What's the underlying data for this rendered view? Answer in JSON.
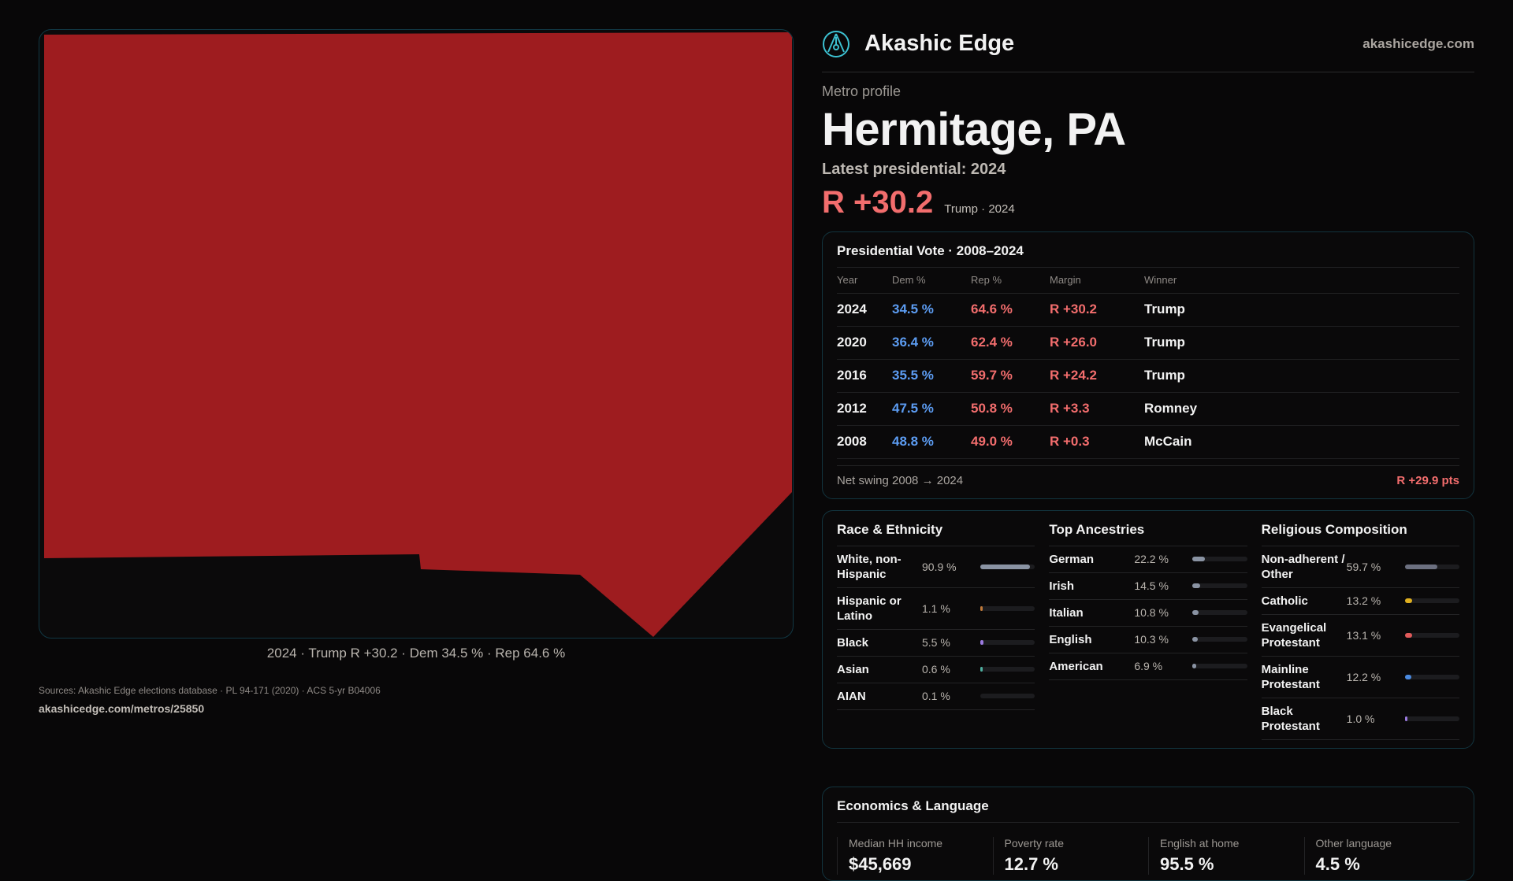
{
  "brand": {
    "name": "Akashic Edge",
    "domain": "akashicedge.com"
  },
  "profile": {
    "kicker": "Metro profile",
    "title": "Hermitage, PA",
    "latest": "Latest presidential: 2024",
    "margin": "R +30.2",
    "sub": "Trump · 2024"
  },
  "map": {
    "fill": "#9e1c1f",
    "caption": "2024 · Trump R +30.2 · Dem 34.5 % · Rep 64.6 %"
  },
  "vote": {
    "title": "Presidential Vote · 2008–2024",
    "headers": [
      "Year",
      "Dem %",
      "Rep %",
      "Margin",
      "Winner"
    ],
    "rows": [
      [
        "2024",
        "34.5 %",
        "64.6 %",
        "R +30.2",
        "Trump"
      ],
      [
        "2020",
        "36.4 %",
        "62.4 %",
        "R +26.0",
        "Trump"
      ],
      [
        "2016",
        "35.5 %",
        "59.7 %",
        "R +24.2",
        "Trump"
      ],
      [
        "2012",
        "47.5 %",
        "50.8 %",
        "R +3.3",
        "Romney"
      ],
      [
        "2008",
        "48.8 %",
        "49.0 %",
        "R +0.3",
        "McCain"
      ]
    ],
    "swing_label": "Net swing 2008 → 2024",
    "swing_value": "R +29.9 pts"
  },
  "race": {
    "title": "Race & Ethnicity",
    "items": [
      {
        "label": "White, non-Hispanic",
        "value": "90.9 %",
        "pct": 90.9,
        "color": "#8a93a3"
      },
      {
        "label": "Hispanic or Latino",
        "value": "1.1 %",
        "pct": 1.1,
        "color": "#c07a3a"
      },
      {
        "label": "Black",
        "value": "5.5 %",
        "pct": 5.5,
        "color": "#9b7ae0"
      },
      {
        "label": "Asian",
        "value": "0.6 %",
        "pct": 0.6,
        "color": "#4fb0a0"
      },
      {
        "label": "AIAN",
        "value": "0.1 %",
        "pct": 0.1,
        "color": "#a0a0a0"
      }
    ]
  },
  "ancestry": {
    "title": "Top Ancestries",
    "items": [
      {
        "label": "German",
        "value": "22.2 %",
        "pct": 22.2,
        "color": "#8a93a3"
      },
      {
        "label": "Irish",
        "value": "14.5 %",
        "pct": 14.5,
        "color": "#8a93a3"
      },
      {
        "label": "Italian",
        "value": "10.8 %",
        "pct": 10.8,
        "color": "#8a93a3"
      },
      {
        "label": "English",
        "value": "10.3 %",
        "pct": 10.3,
        "color": "#8a93a3"
      },
      {
        "label": "American",
        "value": "6.9 %",
        "pct": 6.9,
        "color": "#8a93a3"
      }
    ]
  },
  "religion": {
    "title": "Religious Composition",
    "items": [
      {
        "label": "Non-adherent / Other",
        "value": "59.7 %",
        "pct": 59.7,
        "color": "#6c7080"
      },
      {
        "label": "Catholic",
        "value": "13.2 %",
        "pct": 13.2,
        "color": "#e0b020"
      },
      {
        "label": "Evangelical Protestant",
        "value": "13.1 %",
        "pct": 13.1,
        "color": "#e05a5a"
      },
      {
        "label": "Mainline Protestant",
        "value": "12.2 %",
        "pct": 12.2,
        "color": "#4a8ae0"
      },
      {
        "label": "Black Protestant",
        "value": "1.0 %",
        "pct": 1.0,
        "color": "#9b7ae0"
      }
    ]
  },
  "economics": {
    "title": "Economics & Language",
    "metrics": [
      {
        "label": "Median HH income",
        "value": "$45,669"
      },
      {
        "label": "Poverty rate",
        "value": "12.7 %"
      },
      {
        "label": "English at home",
        "value": "95.5 %"
      },
      {
        "label": "Other language",
        "value": "4.5 %"
      }
    ]
  },
  "footer": {
    "sources": "Sources: Akashic Edge elections database · PL 94-171 (2020) · ACS 5-yr B04006",
    "link": "akashicedge.com/metros/25850"
  }
}
